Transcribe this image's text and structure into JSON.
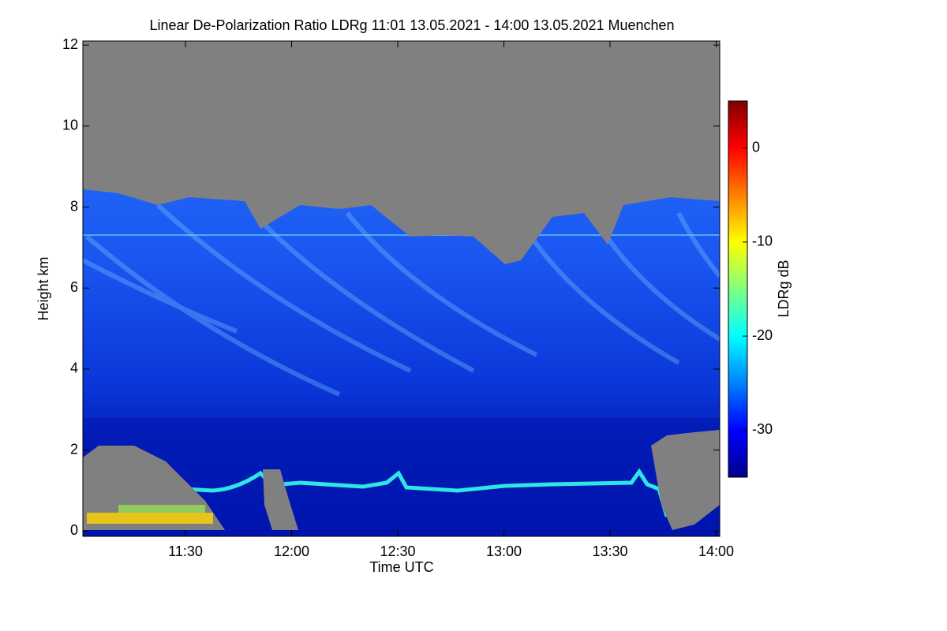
{
  "chart_data": {
    "type": "heatmap",
    "title": "Linear De-Polarization Ratio LDRg   11:01 13.05.2021 - 14:00 13.05.2021 Muenchen",
    "x_label": "Time UTC",
    "y_label": "Height km",
    "colorbar_label": "LDRg dB",
    "colormap": "jet",
    "xlim": [
      661,
      841
    ],
    "xticks": [
      {
        "value": 690,
        "label": "11:30"
      },
      {
        "value": 720,
        "label": "12:00"
      },
      {
        "value": 750,
        "label": "12:30"
      },
      {
        "value": 780,
        "label": "13:00"
      },
      {
        "value": 810,
        "label": "13:30"
      },
      {
        "value": 840,
        "label": "14:00"
      }
    ],
    "ylim": [
      -0.13,
      12.1
    ],
    "yticks": [
      0,
      2,
      4,
      6,
      8,
      10,
      12
    ],
    "clim": [
      -35,
      5
    ],
    "cticks": [
      -30,
      -20,
      -10,
      0
    ]
  }
}
